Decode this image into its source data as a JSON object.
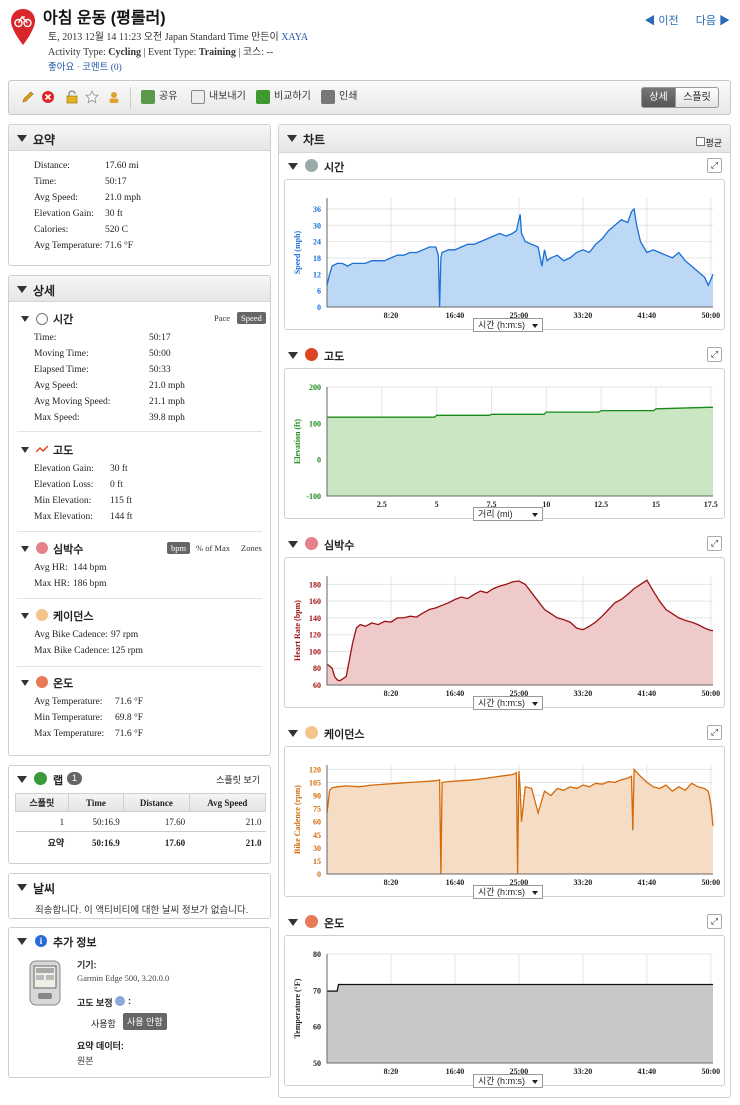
{
  "header": {
    "title": "아침 운동 (평롤러)",
    "meta_line1_prefix": "토, 2013 12월 14 11:23 오전 Japan Standard Time 만든이",
    "meta_user": "XAYA",
    "activity_type_label": "Activity Type:",
    "activity_type": "Cycling",
    "event_type_label": "| Event Type:",
    "event_type": "Training",
    "course_label": "| 코스: --",
    "like": "좋아요",
    "comment": "코멘트 (0)",
    "prev": "◀ 이전",
    "next": "다음 ▶"
  },
  "toolbar": {
    "share": "공유",
    "export": "내보내기",
    "compare": "비교하기",
    "print": "인쇄",
    "view_detail": "상세",
    "view_split": "스플릿"
  },
  "summary": {
    "title": "요약",
    "rows": [
      [
        "Distance:",
        "17.60 mi"
      ],
      [
        "Time:",
        "50:17"
      ],
      [
        "Avg Speed:",
        "21.0 mph"
      ],
      [
        "Elevation Gain:",
        "30 ft"
      ],
      [
        "Calories:",
        "520 C"
      ],
      [
        "Avg Temperature:",
        "71.6 °F"
      ]
    ]
  },
  "detail": {
    "title": "상세",
    "time": {
      "title": "시간",
      "pace": "Pace",
      "speed": "Speed",
      "rows": [
        [
          "Time:",
          "50:17"
        ],
        [
          "Moving Time:",
          "50:00"
        ],
        [
          "Elapsed Time:",
          "50:33"
        ],
        [
          "Avg Speed:",
          "21.0 mph"
        ],
        [
          "Avg Moving Speed:",
          "21.1 mph"
        ],
        [
          "Max Speed:",
          "39.8 mph"
        ]
      ]
    },
    "elev": {
      "title": "고도",
      "rows": [
        [
          "Elevation Gain:",
          "30 ft"
        ],
        [
          "Elevation Loss:",
          "0 ft"
        ],
        [
          "Min Elevation:",
          "115 ft"
        ],
        [
          "Max Elevation:",
          "144 ft"
        ]
      ]
    },
    "hr": {
      "title": "심박수",
      "bpm": "bpm",
      "pct": "% of Max",
      "zones": "Zones",
      "rows": [
        [
          "Avg HR:",
          "144 bpm"
        ],
        [
          "Max HR:",
          "186 bpm"
        ]
      ]
    },
    "cad": {
      "title": "케이던스",
      "rows": [
        [
          "Avg Bike Cadence:",
          "97 rpm"
        ],
        [
          "Max Bike Cadence:",
          "125 rpm"
        ]
      ]
    },
    "temp": {
      "title": "온도",
      "rows": [
        [
          "Avg Temperature:",
          "71.6 °F"
        ],
        [
          "Min Temperature:",
          "69.8 °F"
        ],
        [
          "Max Temperature:",
          "71.6 °F"
        ]
      ]
    }
  },
  "laps": {
    "title": "랩",
    "count": "1",
    "split_view": "스플릿 보기",
    "headers": [
      "스플릿",
      "Time",
      "Distance",
      "Avg Speed"
    ],
    "rows": [
      [
        "1",
        "50:16.9",
        "17.60",
        "21.0"
      ]
    ],
    "summary": [
      "요약",
      "50:16.9",
      "17.60",
      "21.0"
    ]
  },
  "weather": {
    "title": "날씨",
    "text": "죄송합니다. 이 액티비티에 대한 날씨 정보가 없습니다."
  },
  "extra": {
    "title": "추가 정보",
    "device_label": "기기:",
    "device": "Garmin Edge 500, 3.20.0.0",
    "elev_corr_label": "고도 보정",
    "elev_corr_suffix": ":",
    "use": "사용함",
    "nouse": "사용 안함",
    "summary_label": "요약 데이터:",
    "summary_val": "원본"
  },
  "charts_panel": {
    "title": "차트",
    "avg": "평균"
  },
  "chart_data": [
    {
      "type": "area",
      "name": "speed",
      "title": "시간",
      "ylabel": "Speed (mph)",
      "xlabel_select": "시간 (h:m:s)",
      "color": "#1a6fd8",
      "fill": "#bcd8f5",
      "ylim": [
        0,
        40
      ],
      "yticks": [
        "0",
        "6",
        "12",
        "18",
        "24",
        "30",
        "36"
      ],
      "ytickvals": [
        0,
        6,
        12,
        18,
        24,
        30,
        36
      ],
      "xticks": [
        "8:20",
        "16:40",
        "25:00",
        "33:20",
        "41:40",
        "50:00"
      ],
      "xtickvals": [
        500,
        1000,
        1500,
        2000,
        2500,
        3000
      ],
      "xlim": [
        0,
        3017
      ],
      "x": [
        0,
        20,
        40,
        80,
        120,
        160,
        200,
        250,
        300,
        350,
        400,
        450,
        500,
        550,
        600,
        650,
        700,
        750,
        800,
        850,
        870,
        880,
        890,
        900,
        950,
        1000,
        1050,
        1100,
        1150,
        1200,
        1250,
        1300,
        1350,
        1400,
        1450,
        1480,
        1500,
        1510,
        1520,
        1550,
        1600,
        1650,
        1680,
        1700,
        1720,
        1750,
        1800,
        1850,
        1900,
        1950,
        2000,
        2050,
        2100,
        2150,
        2200,
        2250,
        2300,
        2350,
        2380,
        2400,
        2420,
        2450,
        2500,
        2550,
        2600,
        2650,
        2700,
        2750,
        2800,
        2850,
        2900,
        2950,
        2980,
        3000,
        3017
      ],
      "y": [
        8,
        12,
        15,
        16,
        16,
        15,
        16,
        16,
        16,
        17,
        17,
        17,
        18,
        19,
        19,
        20,
        20,
        21,
        22,
        22,
        19,
        0,
        18,
        20,
        21,
        21,
        22,
        23,
        23,
        24,
        25,
        26,
        27,
        26,
        27,
        28,
        32,
        34,
        27,
        24,
        23,
        22,
        15,
        21,
        17,
        18,
        19,
        17,
        18,
        20,
        21,
        20,
        23,
        25,
        28,
        30,
        32,
        31,
        35,
        36,
        30,
        24,
        20,
        21,
        20,
        19,
        18,
        20,
        17,
        15,
        13,
        11,
        8,
        10,
        12
      ]
    },
    {
      "type": "area",
      "name": "elevation",
      "title": "고도",
      "ylabel": "Elevation (ft)",
      "xlabel_select": "거리 (mi)",
      "color": "#1a8a1a",
      "fill": "#cbe6c3",
      "ylim": [
        -100,
        200
      ],
      "yticks": [
        "-100",
        "0",
        "100",
        "200"
      ],
      "ytickvals": [
        -100,
        0,
        100,
        200
      ],
      "xticks": [
        "2.5",
        "5",
        "7.5",
        "10",
        "12.5",
        "15",
        "17.5"
      ],
      "xtickvals": [
        2.5,
        5,
        7.5,
        10,
        12.5,
        15,
        17.5
      ],
      "xlim": [
        0,
        17.6
      ],
      "x": [
        0,
        2.5,
        4.9,
        5.0,
        7.4,
        7.5,
        9.9,
        10.0,
        12.4,
        12.5,
        14.9,
        15.0,
        17.4,
        17.6
      ],
      "y": [
        117,
        117,
        117,
        122,
        122,
        125,
        125,
        131,
        131,
        135,
        135,
        140,
        144,
        144
      ]
    },
    {
      "type": "area",
      "name": "heart_rate",
      "title": "심박수",
      "ylabel": "Heart Rate (bpm)",
      "xlabel_select": "시간 (h:m:s)",
      "color": "#9b1111",
      "fill": "#efcaca",
      "ylim": [
        60,
        190
      ],
      "yticks": [
        "60",
        "80",
        "100",
        "120",
        "140",
        "160",
        "180"
      ],
      "ytickvals": [
        60,
        80,
        100,
        120,
        140,
        160,
        180
      ],
      "xticks": [
        "8:20",
        "16:40",
        "25:00",
        "33:20",
        "41:40",
        "50:00"
      ],
      "xtickvals": [
        500,
        1000,
        1500,
        2000,
        2500,
        3000
      ],
      "xlim": [
        0,
        3017
      ],
      "x": [
        0,
        40,
        60,
        80,
        100,
        150,
        200,
        230,
        260,
        300,
        350,
        400,
        450,
        500,
        550,
        600,
        650,
        700,
        750,
        800,
        850,
        900,
        950,
        1000,
        1050,
        1100,
        1150,
        1200,
        1250,
        1300,
        1350,
        1400,
        1450,
        1500,
        1550,
        1600,
        1650,
        1700,
        1750,
        1800,
        1850,
        1900,
        1950,
        2000,
        2050,
        2100,
        2150,
        2200,
        2250,
        2300,
        2350,
        2400,
        2450,
        2500,
        2550,
        2600,
        2650,
        2700,
        2750,
        2800,
        2850,
        2900,
        2950,
        3000,
        3017
      ],
      "y": [
        85,
        80,
        70,
        66,
        65,
        70,
        110,
        128,
        132,
        130,
        134,
        132,
        136,
        135,
        140,
        140,
        142,
        141,
        146,
        150,
        152,
        155,
        158,
        162,
        165,
        163,
        168,
        172,
        170,
        175,
        178,
        180,
        183,
        184,
        180,
        170,
        160,
        150,
        145,
        140,
        138,
        135,
        128,
        126,
        130,
        135,
        142,
        150,
        158,
        162,
        168,
        175,
        180,
        185,
        172,
        160,
        150,
        145,
        140,
        137,
        135,
        132,
        128,
        125,
        125
      ]
    },
    {
      "type": "area",
      "name": "cadence",
      "title": "케이던스",
      "ylabel": "Bike Cadence (rpm)",
      "xlabel_select": "시간 (h:m:s)",
      "color": "#d46a0a",
      "fill": "#f5dcc4",
      "ylim": [
        0,
        125
      ],
      "yticks": [
        "0",
        "15",
        "30",
        "45",
        "60",
        "75",
        "90",
        "105",
        "120"
      ],
      "ytickvals": [
        0,
        15,
        30,
        45,
        60,
        75,
        90,
        105,
        120
      ],
      "xticks": [
        "8:20",
        "16:40",
        "25:00",
        "33:20",
        "41:40",
        "50:00"
      ],
      "xtickvals": [
        500,
        1000,
        1500,
        2000,
        2500,
        3000
      ],
      "xlim": [
        0,
        3017
      ],
      "x": [
        0,
        20,
        40,
        80,
        150,
        250,
        350,
        450,
        550,
        650,
        750,
        850,
        880,
        890,
        900,
        950,
        1050,
        1150,
        1250,
        1350,
        1450,
        1480,
        1490,
        1500,
        1510,
        1520,
        1550,
        1600,
        1650,
        1700,
        1750,
        1800,
        1850,
        1900,
        1950,
        2000,
        2050,
        2100,
        2150,
        2200,
        2250,
        2300,
        2350,
        2380,
        2390,
        2400,
        2450,
        2500,
        2550,
        2600,
        2650,
        2700,
        2750,
        2800,
        2850,
        2900,
        2950,
        2980,
        3000,
        3017
      ],
      "y": [
        70,
        96,
        99,
        100,
        101,
        100,
        102,
        103,
        104,
        105,
        106,
        107,
        108,
        0,
        105,
        106,
        107,
        108,
        110,
        112,
        114,
        116,
        0,
        118,
        98,
        60,
        100,
        98,
        70,
        95,
        90,
        98,
        96,
        100,
        98,
        102,
        100,
        104,
        103,
        106,
        105,
        108,
        110,
        112,
        50,
        120,
        112,
        105,
        100,
        98,
        102,
        95,
        100,
        96,
        104,
        100,
        98,
        95,
        80,
        55
      ]
    },
    {
      "type": "area",
      "name": "temperature",
      "title": "온도",
      "ylabel": "Temperature (°F)",
      "xlabel_select": "시간 (h:m:s)",
      "color": "#111111",
      "fill": "#c8c8c8",
      "ylim": [
        50,
        80
      ],
      "yticks": [
        "50",
        "60",
        "70",
        "80"
      ],
      "ytickvals": [
        50,
        60,
        70,
        80
      ],
      "xticks": [
        "8:20",
        "16:40",
        "25:00",
        "33:20",
        "41:40",
        "50:00"
      ],
      "xtickvals": [
        500,
        1000,
        1500,
        2000,
        2500,
        3000
      ],
      "xlim": [
        0,
        3017
      ],
      "x": [
        0,
        80,
        90,
        3017
      ],
      "y": [
        69.8,
        69.8,
        71.6,
        71.6
      ]
    }
  ]
}
